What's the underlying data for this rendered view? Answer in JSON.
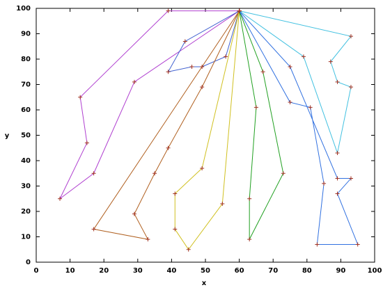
{
  "chart_data": {
    "type": "line",
    "x_label": "x",
    "y_label": "y",
    "xlim": [
      0,
      100
    ],
    "ylim": [
      0,
      100
    ],
    "xticks": [
      0,
      10,
      20,
      30,
      40,
      50,
      60,
      70,
      80,
      90,
      100
    ],
    "yticks": [
      0,
      10,
      20,
      30,
      40,
      50,
      60,
      70,
      80,
      90,
      100
    ],
    "marker_color": "#a03020",
    "series": [
      {
        "color": "#b040d0",
        "x": [
          60,
          39,
          13,
          15,
          7,
          17,
          29,
          60
        ],
        "y": [
          99,
          99,
          65,
          47,
          25,
          35,
          71,
          99
        ]
      },
      {
        "color": "#4060d0",
        "x": [
          60,
          44,
          39,
          46,
          49,
          56,
          60
        ],
        "y": [
          99,
          87,
          75,
          77,
          77,
          81,
          99
        ]
      },
      {
        "color": "#b06020",
        "x": [
          60,
          49,
          39,
          35,
          29,
          33,
          17,
          60
        ],
        "y": [
          99,
          69,
          45,
          35,
          19,
          9,
          13,
          99
        ]
      },
      {
        "color": "#d0c020",
        "x": [
          60,
          55,
          45,
          41,
          41,
          49,
          60
        ],
        "y": [
          99,
          23,
          5,
          13,
          27,
          37,
          99
        ]
      },
      {
        "color": "#20a020",
        "x": [
          60,
          65,
          63,
          63,
          73,
          67,
          60
        ],
        "y": [
          99,
          61,
          25,
          9,
          35,
          75,
          99
        ]
      },
      {
        "color": "#3070e0",
        "x": [
          60,
          75,
          89,
          93,
          89,
          95,
          83,
          85,
          81,
          75,
          60
        ],
        "y": [
          99,
          77,
          33,
          33,
          27,
          7,
          7,
          31,
          61,
          63,
          99
        ]
      },
      {
        "color": "#40c0e0",
        "x": [
          60,
          93,
          87,
          89,
          93,
          89,
          79,
          60
        ],
        "y": [
          99,
          89,
          79,
          71,
          69,
          43,
          81,
          99
        ]
      }
    ]
  }
}
